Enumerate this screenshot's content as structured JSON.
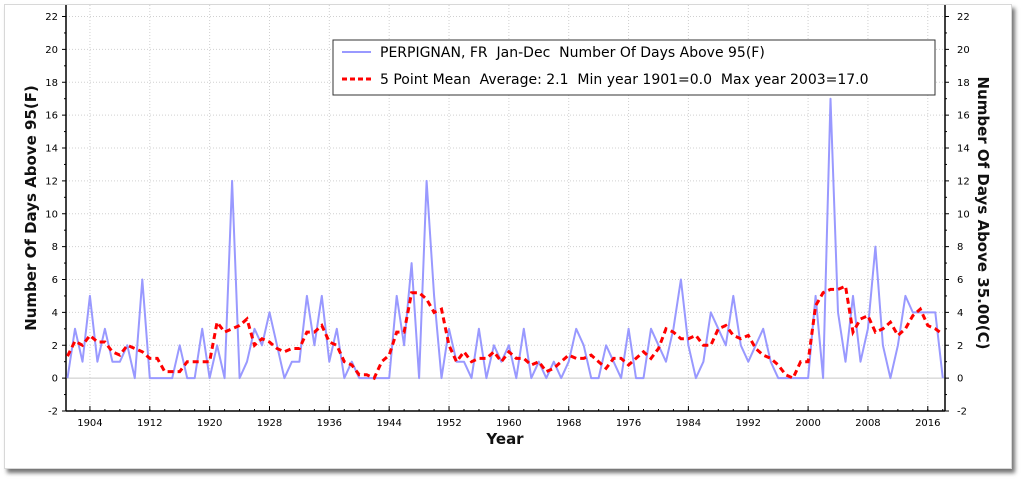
{
  "chart_data": {
    "type": "line",
    "title": "",
    "xlabel": "Year",
    "ylabel": "Number Of Days Above 95(F)",
    "ylabel_right": "Number Of Days Above 35.00(C)",
    "xlim": [
      1900.8,
      2018.3
    ],
    "ylim": [
      -2,
      22.7
    ],
    "x_ticks": [
      1904,
      1912,
      1920,
      1928,
      1936,
      1944,
      1952,
      1960,
      1968,
      1976,
      1984,
      1992,
      2000,
      2008,
      2016
    ],
    "y_ticks": [
      -2,
      0,
      2,
      4,
      6,
      8,
      10,
      12,
      14,
      16,
      18,
      20,
      22
    ],
    "grid": true,
    "legend_position": "top-right",
    "legend": [
      "PERPIGNAN, FR  Jan-Dec  Number Of Days Above 95(F)",
      "5 Point Mean  Average: 2.1  Min year 1901=0.0  Max year 2003=17.0"
    ],
    "mean_window": 5,
    "colors": {
      "raw": "#9999ff",
      "mean": "#ff0000"
    },
    "x_start": 1901,
    "series": [
      {
        "name": "PERPIGNAN, FR Jan-Dec Number Of Days Above 95(F)",
        "values": [
          0,
          3,
          1,
          5,
          1,
          3,
          1,
          1,
          2,
          0,
          6,
          0,
          0,
          0,
          0,
          2,
          0,
          0,
          3,
          0,
          2,
          0,
          12,
          0,
          1,
          3,
          2,
          4,
          2,
          0,
          1,
          1,
          5,
          2,
          5,
          1,
          3,
          0,
          1,
          0,
          0,
          0,
          0,
          0,
          5,
          2,
          7,
          0,
          12,
          5,
          0,
          3,
          1,
          1,
          0,
          3,
          0,
          2,
          1,
          2,
          0,
          3,
          0,
          1,
          0,
          1,
          0,
          1,
          3,
          2,
          0,
          0,
          2,
          1,
          0,
          3,
          0,
          0,
          3,
          2,
          1,
          3,
          6,
          2,
          0,
          1,
          4,
          3,
          2,
          5,
          2,
          1,
          2,
          3,
          1,
          0,
          0,
          0,
          0,
          0,
          5,
          0,
          17,
          4,
          1,
          5,
          1,
          3,
          8,
          2,
          0,
          2,
          5,
          4,
          4,
          4,
          4,
          0
        ]
      }
    ]
  }
}
